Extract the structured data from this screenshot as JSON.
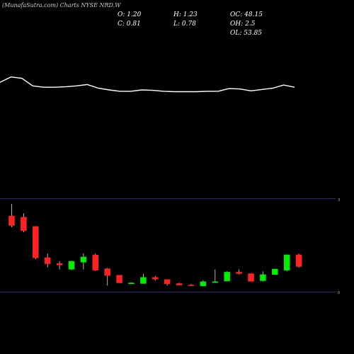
{
  "header": {
    "title": "(MunafaSutra.com) Charts NYSE NRD.W",
    "stats": {
      "O": "O: 1.20",
      "H": "H: 1.23",
      "OC": "OC: 48.15",
      "C": "C: 0.81",
      "L": "L: 0.78",
      "OH": "OH: 2.5",
      "OL": "OL: 53.85"
    }
  },
  "chart_data": [
    {
      "type": "line",
      "y": [
        26.7,
        27.9,
        27.6,
        25.9,
        25.6,
        25.6,
        25.7,
        25.9,
        26.2,
        25.4,
        25.0,
        24.7,
        24.7,
        25.0,
        24.9,
        24.7,
        24.6,
        24.6,
        24.6,
        24.7,
        24.7,
        25.3,
        25.2,
        24.8,
        25.1,
        25.4,
        26.1,
        25.6
      ]
    },
    {
      "type": "candlestick",
      "y_ticks": [
        "3",
        "0"
      ],
      "colors": {
        "up": "#00ee00",
        "down": "#ff2222",
        "axis": "#2a2a6e"
      },
      "candles": [
        {
          "o": 2.46,
          "h": 2.84,
          "l": 2.09,
          "c": 2.14
        },
        {
          "o": 2.42,
          "h": 2.54,
          "l": 1.93,
          "c": 1.97
        },
        {
          "o": 2.12,
          "h": 2.12,
          "l": 1.05,
          "c": 1.09
        },
        {
          "o": 1.11,
          "h": 1.24,
          "l": 0.79,
          "c": 0.9
        },
        {
          "o": 0.92,
          "h": 0.99,
          "l": 0.72,
          "c": 0.86
        },
        {
          "o": 0.72,
          "h": 1.0,
          "l": 0.7,
          "c": 0.99
        },
        {
          "o": 0.95,
          "h": 1.24,
          "l": 0.72,
          "c": 1.13
        },
        {
          "o": 1.19,
          "h": 1.24,
          "l": 0.67,
          "c": 0.69
        },
        {
          "o": 0.75,
          "h": 0.77,
          "l": 0.2,
          "c": 0.52
        },
        {
          "o": 0.54,
          "h": 0.54,
          "l": 0.28,
          "c": 0.28
        },
        {
          "o": 0.25,
          "h": 0.3,
          "l": 0.25,
          "c": 0.29
        },
        {
          "o": 0.26,
          "h": 0.58,
          "l": 0.26,
          "c": 0.47
        },
        {
          "o": 0.47,
          "h": 0.51,
          "l": 0.36,
          "c": 0.4
        },
        {
          "o": 0.4,
          "h": 0.4,
          "l": 0.2,
          "c": 0.25
        },
        {
          "o": 0.27,
          "h": 0.29,
          "l": 0.21,
          "c": 0.21
        },
        {
          "o": 0.22,
          "h": 0.25,
          "l": 0.19,
          "c": 0.2
        },
        {
          "o": 0.18,
          "h": 0.37,
          "l": 0.18,
          "c": 0.33
        },
        {
          "o": 0.29,
          "h": 0.72,
          "l": 0.29,
          "c": 0.33
        },
        {
          "o": 0.34,
          "h": 0.66,
          "l": 0.34,
          "c": 0.64
        },
        {
          "o": 0.64,
          "h": 0.72,
          "l": 0.56,
          "c": 0.58
        },
        {
          "o": 0.59,
          "h": 0.59,
          "l": 0.33,
          "c": 0.33
        },
        {
          "o": 0.35,
          "h": 0.66,
          "l": 0.33,
          "c": 0.56
        },
        {
          "o": 0.55,
          "h": 0.74,
          "l": 0.55,
          "c": 0.74
        },
        {
          "o": 0.69,
          "h": 1.2,
          "l": 0.66,
          "c": 1.2
        },
        {
          "o": 1.2,
          "h": 1.23,
          "l": 0.78,
          "c": 0.81
        }
      ]
    }
  ]
}
